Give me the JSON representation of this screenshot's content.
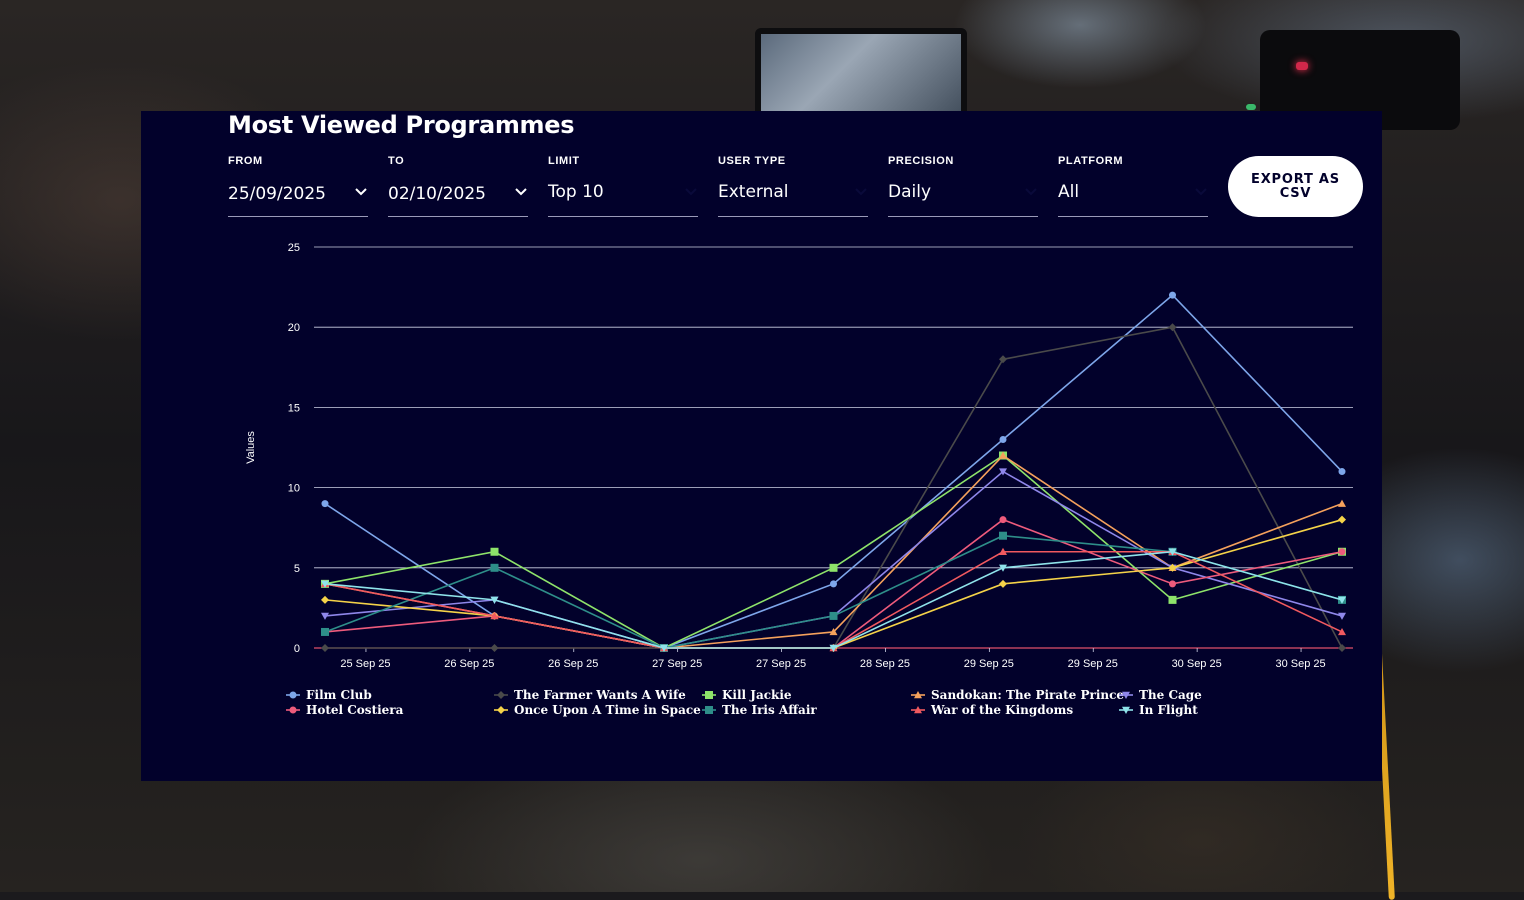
{
  "page": {
    "title": "Most Viewed Programmes"
  },
  "filters": {
    "from": {
      "label": "FROM",
      "value": "25/09/2025"
    },
    "to": {
      "label": "TO",
      "value": "02/10/2025"
    },
    "limit": {
      "label": "LIMIT",
      "value": "Top 10"
    },
    "user_type": {
      "label": "USER TYPE",
      "value": "External"
    },
    "precision": {
      "label": "PRECISION",
      "value": "Daily"
    },
    "platform": {
      "label": "PLATFORM",
      "value": "All"
    }
  },
  "export": {
    "label": "EXPORT AS CSV"
  },
  "icons": {
    "dropdown": "chevron-down-icon"
  },
  "chart_data": {
    "type": "line",
    "ylabel": "Values",
    "xlabel": "",
    "ylim": [
      0,
      25
    ],
    "yticks": [
      0,
      5,
      10,
      15,
      20,
      25
    ],
    "x_tick_labels": [
      "25 Sep 25",
      "26 Sep 25",
      "26 Sep 25",
      "27 Sep 25",
      "27 Sep 25",
      "28 Sep 25",
      "29 Sep 25",
      "29 Sep 25",
      "30 Sep 25",
      "30 Sep 25"
    ],
    "x_tick_count": 10,
    "x_points": 7,
    "grid": "horizontal",
    "legend_position": "bottom",
    "series": [
      {
        "name": "Film Club",
        "color": "#7ea6ea",
        "marker": "circle",
        "values": [
          9,
          2,
          0,
          4,
          13,
          22,
          11
        ]
      },
      {
        "name": "The Farmer Wants A Wife",
        "color": "#4a4a4a",
        "marker": "diamond",
        "values": [
          0,
          0,
          0,
          0,
          18,
          20,
          0
        ]
      },
      {
        "name": "Kill Jackie",
        "color": "#8ee36a",
        "marker": "square",
        "values": [
          4,
          6,
          0,
          5,
          12,
          3,
          6
        ]
      },
      {
        "name": "Sandokan: The Pirate Prince",
        "color": "#f5a15c",
        "marker": "triangle",
        "values": [
          4,
          2,
          0,
          1,
          12,
          5,
          9
        ]
      },
      {
        "name": "The Cage",
        "color": "#8f87ea",
        "marker": "triangle-down",
        "values": [
          2,
          3,
          0,
          2,
          11,
          5,
          2
        ]
      },
      {
        "name": "Hotel Costiera",
        "color": "#ee5b7c",
        "marker": "circle",
        "values": [
          1,
          2,
          0,
          0,
          8,
          4,
          6
        ]
      },
      {
        "name": "Once Upon A Time in Space",
        "color": "#f5d349",
        "marker": "diamond",
        "values": [
          3,
          2,
          0,
          0,
          4,
          5,
          8
        ]
      },
      {
        "name": "The Iris Affair",
        "color": "#2e8e89",
        "marker": "square",
        "values": [
          1,
          5,
          0,
          2,
          7,
          6,
          3
        ]
      },
      {
        "name": "War of the Kingdoms",
        "color": "#f0595f",
        "marker": "triangle",
        "values": [
          4,
          2,
          0,
          0,
          6,
          6,
          1
        ]
      },
      {
        "name": "In Flight",
        "color": "#8fe3ea",
        "marker": "triangle-down",
        "values": [
          4,
          3,
          0,
          0,
          5,
          6,
          3
        ]
      }
    ]
  }
}
